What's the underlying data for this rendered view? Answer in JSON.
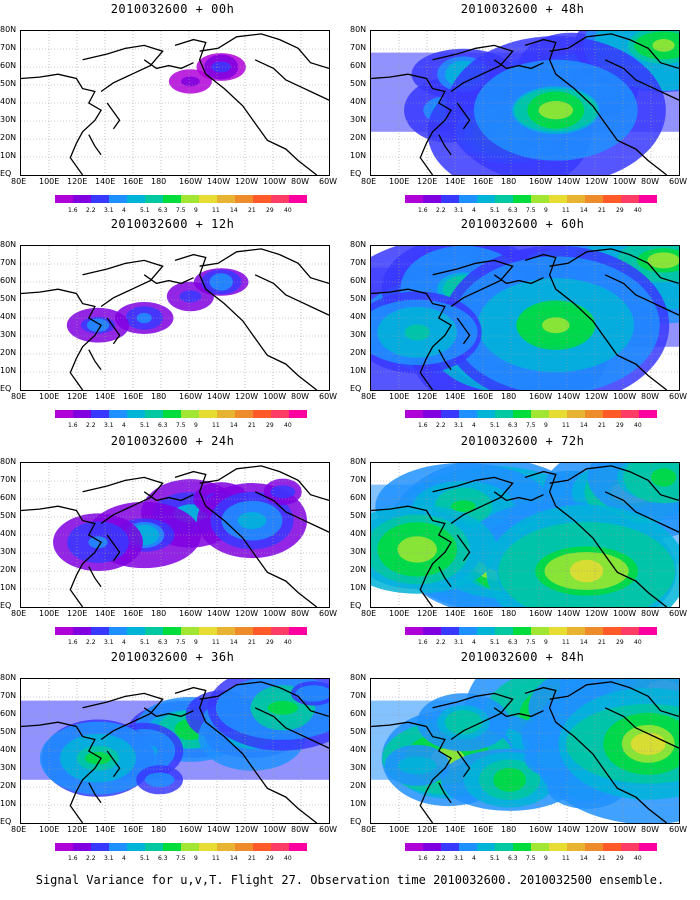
{
  "caption": "Signal Variance for u,v,T. Flight 27. Observation time 2010032600. 2010032500 ensemble.",
  "colors": {
    "levels": [
      "#b000d8",
      "#8000e0",
      "#3838ff",
      "#1e90ff",
      "#00b4d8",
      "#00c8a0",
      "#00dc3c",
      "#a0e632",
      "#e6dc32",
      "#e6b432",
      "#ee8c2c",
      "#ff5a28",
      "#ff3c64",
      "#ff00a0"
    ]
  },
  "chart_data": [
    {
      "type": "heatmap",
      "title": "2010032600 + 00h",
      "lead": "00h",
      "activity": 0.15,
      "ylabels": [
        "80N",
        "70N",
        "60N",
        "50N",
        "40N",
        "30N",
        "20N",
        "10N",
        "EQ"
      ],
      "xlabels": [
        "80E",
        "100E",
        "120E",
        "140E",
        "160E",
        "180",
        "160W",
        "140W",
        "120W",
        "100W",
        "80W",
        "60W"
      ],
      "colorbar": [
        "1.6",
        "2.2",
        "3.1",
        "4",
        "5.1",
        "6.3",
        "7.5",
        "9",
        "11",
        "14",
        "21",
        "29",
        "40"
      ]
    },
    {
      "type": "heatmap",
      "title": "2010032600 + 12h",
      "lead": "12h",
      "activity": 0.3,
      "ylabels": [
        "80N",
        "70N",
        "60N",
        "50N",
        "40N",
        "30N",
        "20N",
        "10N",
        "EQ"
      ],
      "xlabels": [
        "80E",
        "100E",
        "120E",
        "140E",
        "160E",
        "180",
        "160W",
        "140W",
        "120W",
        "100W",
        "80W",
        "60W"
      ],
      "colorbar": [
        "1.6",
        "2.2",
        "3.1",
        "4",
        "5.1",
        "6.3",
        "7.5",
        "9",
        "11",
        "14",
        "21",
        "29",
        "40"
      ]
    },
    {
      "type": "heatmap",
      "title": "2010032600 + 24h",
      "lead": "24h",
      "activity": 0.45,
      "ylabels": [
        "80N",
        "70N",
        "60N",
        "50N",
        "40N",
        "30N",
        "20N",
        "10N",
        "EQ"
      ],
      "xlabels": [
        "80E",
        "100E",
        "120E",
        "140E",
        "160E",
        "180",
        "160W",
        "140W",
        "120W",
        "100W",
        "80W",
        "60W"
      ],
      "colorbar": [
        "1.6",
        "2.2",
        "3.1",
        "4",
        "5.1",
        "6.3",
        "7.5",
        "9",
        "11",
        "14",
        "21",
        "29",
        "40"
      ]
    },
    {
      "type": "heatmap",
      "title": "2010032600 + 36h",
      "lead": "36h",
      "activity": 0.6,
      "ylabels": [
        "80N",
        "70N",
        "60N",
        "50N",
        "40N",
        "30N",
        "20N",
        "10N",
        "EQ"
      ],
      "xlabels": [
        "80E",
        "100E",
        "120E",
        "140E",
        "160E",
        "180",
        "160W",
        "140W",
        "120W",
        "100W",
        "80W",
        "60W"
      ],
      "colorbar": [
        "1.6",
        "2.2",
        "3.1",
        "4",
        "5.1",
        "6.3",
        "7.5",
        "9",
        "11",
        "14",
        "21",
        "29",
        "40"
      ]
    },
    {
      "type": "heatmap",
      "title": "2010032600 + 48h",
      "lead": "48h",
      "activity": 0.7,
      "ylabels": [
        "80N",
        "70N",
        "60N",
        "50N",
        "40N",
        "30N",
        "20N",
        "10N",
        "EQ"
      ],
      "xlabels": [
        "80E",
        "100E",
        "120E",
        "140E",
        "160E",
        "180",
        "160W",
        "140W",
        "120W",
        "100W",
        "80W",
        "60W"
      ],
      "colorbar": [
        "1.6",
        "2.2",
        "3.1",
        "4",
        "5.1",
        "6.3",
        "7.5",
        "9",
        "11",
        "14",
        "21",
        "29",
        "40"
      ]
    },
    {
      "type": "heatmap",
      "title": "2010032600 + 60h",
      "lead": "60h",
      "activity": 0.8,
      "ylabels": [
        "80N",
        "70N",
        "60N",
        "50N",
        "40N",
        "30N",
        "20N",
        "10N",
        "EQ"
      ],
      "xlabels": [
        "80E",
        "100E",
        "120E",
        "140E",
        "160E",
        "180",
        "160W",
        "140W",
        "120W",
        "100W",
        "80W",
        "60W"
      ],
      "colorbar": [
        "1.6",
        "2.2",
        "3.1",
        "4",
        "5.1",
        "6.3",
        "7.5",
        "9",
        "11",
        "14",
        "21",
        "29",
        "40"
      ]
    },
    {
      "type": "heatmap",
      "title": "2010032600 + 72h",
      "lead": "72h",
      "activity": 0.88,
      "ylabels": [
        "80N",
        "70N",
        "60N",
        "50N",
        "40N",
        "30N",
        "20N",
        "10N",
        "EQ"
      ],
      "xlabels": [
        "80E",
        "100E",
        "120E",
        "140E",
        "160E",
        "180",
        "160W",
        "140W",
        "120W",
        "100W",
        "80W",
        "60W"
      ],
      "colorbar": [
        "1.6",
        "2.2",
        "3.1",
        "4",
        "5.1",
        "6.3",
        "7.5",
        "9",
        "11",
        "14",
        "21",
        "29",
        "40"
      ]
    },
    {
      "type": "heatmap",
      "title": "2010032600 + 84h",
      "lead": "84h",
      "activity": 0.96,
      "ylabels": [
        "80N",
        "70N",
        "60N",
        "50N",
        "40N",
        "30N",
        "20N",
        "10N",
        "EQ"
      ],
      "xlabels": [
        "80E",
        "100E",
        "120E",
        "140E",
        "160E",
        "180",
        "160W",
        "140W",
        "120W",
        "100W",
        "80W",
        "60W"
      ],
      "colorbar": [
        "1.6",
        "2.2",
        "3.1",
        "4",
        "5.1",
        "6.3",
        "7.5",
        "9",
        "11",
        "14",
        "21",
        "29",
        "40"
      ]
    }
  ]
}
